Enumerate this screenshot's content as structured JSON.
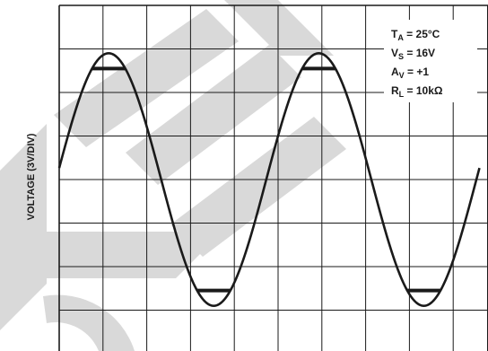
{
  "chart_data": {
    "type": "line",
    "title": "",
    "xlabel": "",
    "ylabel": "VOLTAGE (3V/DIV)",
    "grid": true,
    "grid_divisions": {
      "x": 10,
      "y": 8
    },
    "watermark": "DELETED",
    "conditions": [
      {
        "symbol": "T",
        "subscript": "A",
        "rest": " = 25°C"
      },
      {
        "symbol": "V",
        "subscript": "S",
        "rest": " = 16V"
      },
      {
        "symbol": "A",
        "subscript": "V",
        "rest": " = +1"
      },
      {
        "symbol": "R",
        "subscript": "L",
        "rest": " = 10kΩ"
      }
    ],
    "series": [
      {
        "x_div": [
          0,
          1.13,
          3.53,
          5.93,
          8.33,
          9.6
        ],
        "y_div": [
          -0.16,
          2.9,
          -2.9,
          2.9,
          -2.9,
          -0.35
        ],
        "waveform": "sine",
        "period_div": 4.8,
        "amplitude_div": 2.9,
        "clip_div": 2.55
      }
    ]
  }
}
